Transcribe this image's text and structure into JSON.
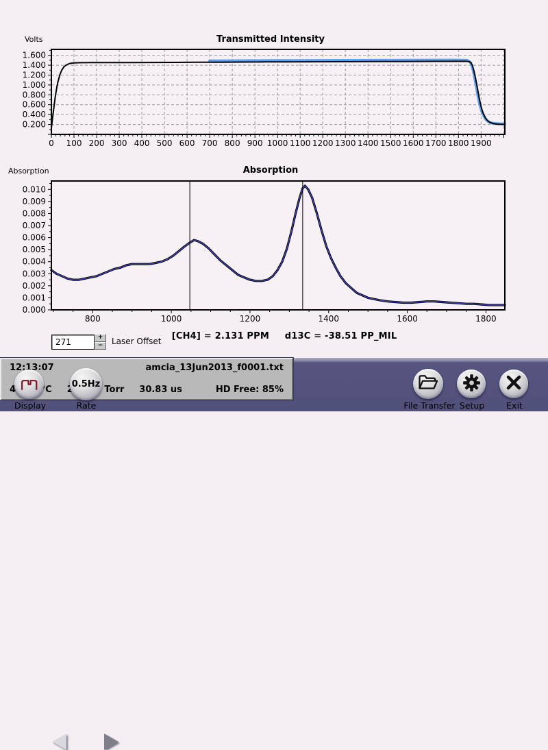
{
  "app": {
    "background": "#f5eff4",
    "toolbar_color": "#50507b",
    "plot_background": "#f7f1f6",
    "grid_color": "#9a9a9a"
  },
  "chart_data": [
    {
      "type": "line",
      "title": "Transmitted Intensity",
      "ylabel": "Volts",
      "xlabel": "",
      "xlim": [
        0,
        2005
      ],
      "ylim": [
        0,
        1.72
      ],
      "grid": true,
      "x_label_min": 0,
      "x_label_max": 1900,
      "x_major_step": 100,
      "x_minor_step": 20,
      "y_label_min": 0.2,
      "y_label_max": 1.6,
      "y_major_step": 0.2,
      "y_minor_step": 0.1,
      "y_decimals": 3,
      "legend": "none",
      "series": [
        {
          "name": "reference-trace",
          "color": "#5aa3f0",
          "width": 4,
          "points": [
            [
              700,
              1.487
            ],
            [
              800,
              1.49
            ],
            [
              900,
              1.492
            ],
            [
              1000,
              1.494
            ],
            [
              1100,
              1.495
            ],
            [
              1200,
              1.497
            ],
            [
              1300,
              1.498
            ],
            [
              1400,
              1.499
            ],
            [
              1500,
              1.5
            ],
            [
              1600,
              1.502
            ],
            [
              1700,
              1.503
            ],
            [
              1800,
              1.504
            ],
            [
              1838,
              1.5
            ],
            [
              1852,
              1.46
            ],
            [
              1860,
              1.38
            ],
            [
              1866,
              1.27
            ],
            [
              1872,
              1.13
            ],
            [
              1878,
              0.98
            ],
            [
              1884,
              0.83
            ],
            [
              1890,
              0.69
            ],
            [
              1896,
              0.57
            ],
            [
              1903,
              0.46
            ],
            [
              1911,
              0.38
            ],
            [
              1920,
              0.31
            ],
            [
              1930,
              0.265
            ],
            [
              1942,
              0.235
            ],
            [
              1958,
              0.222
            ],
            [
              1980,
              0.215
            ],
            [
              2005,
              0.212
            ]
          ]
        },
        {
          "name": "signal-trace",
          "color": "#000000",
          "width": 2,
          "points": [
            [
              0,
              0.13
            ],
            [
              6,
              0.36
            ],
            [
              12,
              0.58
            ],
            [
              18,
              0.78
            ],
            [
              24,
              0.95
            ],
            [
              30,
              1.08
            ],
            [
              38,
              1.21
            ],
            [
              46,
              1.3
            ],
            [
              56,
              1.37
            ],
            [
              68,
              1.41
            ],
            [
              82,
              1.435
            ],
            [
              100,
              1.447
            ],
            [
              130,
              1.451
            ],
            [
              170,
              1.452
            ],
            [
              250,
              1.452
            ],
            [
              350,
              1.454
            ],
            [
              450,
              1.455
            ],
            [
              550,
              1.457
            ],
            [
              650,
              1.459
            ],
            [
              750,
              1.461
            ],
            [
              850,
              1.463
            ],
            [
              950,
              1.466
            ],
            [
              1050,
              1.468
            ],
            [
              1150,
              1.469
            ],
            [
              1250,
              1.471
            ],
            [
              1350,
              1.472
            ],
            [
              1450,
              1.474
            ],
            [
              1550,
              1.475
            ],
            [
              1650,
              1.476
            ],
            [
              1750,
              1.477
            ],
            [
              1835,
              1.478
            ],
            [
              1848,
              1.472
            ],
            [
              1855,
              1.45
            ],
            [
              1861,
              1.4
            ],
            [
              1867,
              1.31
            ],
            [
              1873,
              1.19
            ],
            [
              1879,
              1.05
            ],
            [
              1885,
              0.9
            ],
            [
              1891,
              0.75
            ],
            [
              1897,
              0.62
            ],
            [
              1903,
              0.51
            ],
            [
              1910,
              0.42
            ],
            [
              1918,
              0.34
            ],
            [
              1927,
              0.285
            ],
            [
              1938,
              0.245
            ],
            [
              1952,
              0.22
            ],
            [
              1970,
              0.207
            ],
            [
              2005,
              0.2
            ]
          ]
        }
      ]
    },
    {
      "type": "line",
      "title": "Absorption",
      "ylabel": "Absorption",
      "xlabel": "",
      "xlim": [
        695,
        1848
      ],
      "ylim": [
        0,
        0.0107
      ],
      "grid": false,
      "x_label_min": 800,
      "x_label_max": 1800,
      "x_major_step": 200,
      "x_minor_step": 50,
      "y_label_min": 0,
      "y_label_max": 0.01,
      "y_major_step": 0.001,
      "y_minor_step": 0.0005,
      "y_decimals": 3,
      "legend": "none",
      "markers": [
        1047,
        1334
      ],
      "points": [
        [
          695,
          0.0033
        ],
        [
          708,
          0.003
        ],
        [
          722,
          0.0028
        ],
        [
          736,
          0.0026
        ],
        [
          750,
          0.0025
        ],
        [
          765,
          0.0025
        ],
        [
          780,
          0.0026
        ],
        [
          795,
          0.0027
        ],
        [
          810,
          0.0028
        ],
        [
          825,
          0.003
        ],
        [
          840,
          0.0032
        ],
        [
          855,
          0.0034
        ],
        [
          870,
          0.0035
        ],
        [
          885,
          0.0037
        ],
        [
          900,
          0.0038
        ],
        [
          915,
          0.0038
        ],
        [
          930,
          0.0038
        ],
        [
          945,
          0.0038
        ],
        [
          960,
          0.0039
        ],
        [
          975,
          0.004
        ],
        [
          990,
          0.0042
        ],
        [
          1005,
          0.0045
        ],
        [
          1020,
          0.0049
        ],
        [
          1035,
          0.0053
        ],
        [
          1048,
          0.0056
        ],
        [
          1058,
          0.0058
        ],
        [
          1068,
          0.0057
        ],
        [
          1080,
          0.0055
        ],
        [
          1095,
          0.0051
        ],
        [
          1110,
          0.0046
        ],
        [
          1125,
          0.0041
        ],
        [
          1140,
          0.0037
        ],
        [
          1155,
          0.0033
        ],
        [
          1170,
          0.0029
        ],
        [
          1185,
          0.0027
        ],
        [
          1200,
          0.0025
        ],
        [
          1215,
          0.0024
        ],
        [
          1230,
          0.0024
        ],
        [
          1245,
          0.0025
        ],
        [
          1258,
          0.0028
        ],
        [
          1270,
          0.0033
        ],
        [
          1282,
          0.004
        ],
        [
          1294,
          0.0051
        ],
        [
          1306,
          0.0066
        ],
        [
          1316,
          0.008
        ],
        [
          1326,
          0.0093
        ],
        [
          1334,
          0.0101
        ],
        [
          1340,
          0.0103
        ],
        [
          1348,
          0.01
        ],
        [
          1358,
          0.0093
        ],
        [
          1370,
          0.008
        ],
        [
          1382,
          0.0066
        ],
        [
          1394,
          0.0053
        ],
        [
          1406,
          0.0043
        ],
        [
          1418,
          0.0035
        ],
        [
          1430,
          0.0028
        ],
        [
          1444,
          0.0022
        ],
        [
          1458,
          0.0018
        ],
        [
          1472,
          0.0014
        ],
        [
          1486,
          0.0012
        ],
        [
          1500,
          0.001
        ],
        [
          1515,
          0.0009
        ],
        [
          1530,
          0.0008
        ],
        [
          1550,
          0.0007
        ],
        [
          1570,
          0.00065
        ],
        [
          1590,
          0.0006
        ],
        [
          1610,
          0.0006
        ],
        [
          1630,
          0.00065
        ],
        [
          1650,
          0.0007
        ],
        [
          1670,
          0.0007
        ],
        [
          1690,
          0.00065
        ],
        [
          1710,
          0.0006
        ],
        [
          1730,
          0.00055
        ],
        [
          1750,
          0.0005
        ],
        [
          1770,
          0.0005
        ],
        [
          1790,
          0.00045
        ],
        [
          1810,
          0.0004
        ],
        [
          1830,
          0.0004
        ],
        [
          1848,
          0.0004
        ]
      ],
      "series": [
        {
          "name": "measured-band",
          "color": "#000000",
          "width": 3.2
        },
        {
          "name": "fit-line",
          "color": "#4343bb",
          "width": 1.4
        }
      ]
    }
  ],
  "controls": {
    "laser_offset_value": "271",
    "laser_offset_label": "Laser Offset",
    "spinner_up_label": "+",
    "spinner_down_label": "−"
  },
  "readout": {
    "ch4": "[CH4] = 2.131  PPM",
    "d13c": "d13C = -38.51  PP_MIL"
  },
  "status": {
    "time": "12:13:07",
    "filename": "amcia_13Jun2013_f0001.txt",
    "temperature": "44.99 °C",
    "pressure": "299.03 Torr",
    "pulse_width": "30.83 us",
    "hd_free": "HD Free: 85%"
  },
  "toolbar": {
    "display_label": "Display",
    "rate_label": "Rate",
    "rate_value": "0.5Hz",
    "file_transfer_label": "File Transfer",
    "setup_label": "Setup",
    "exit_label": "Exit"
  }
}
